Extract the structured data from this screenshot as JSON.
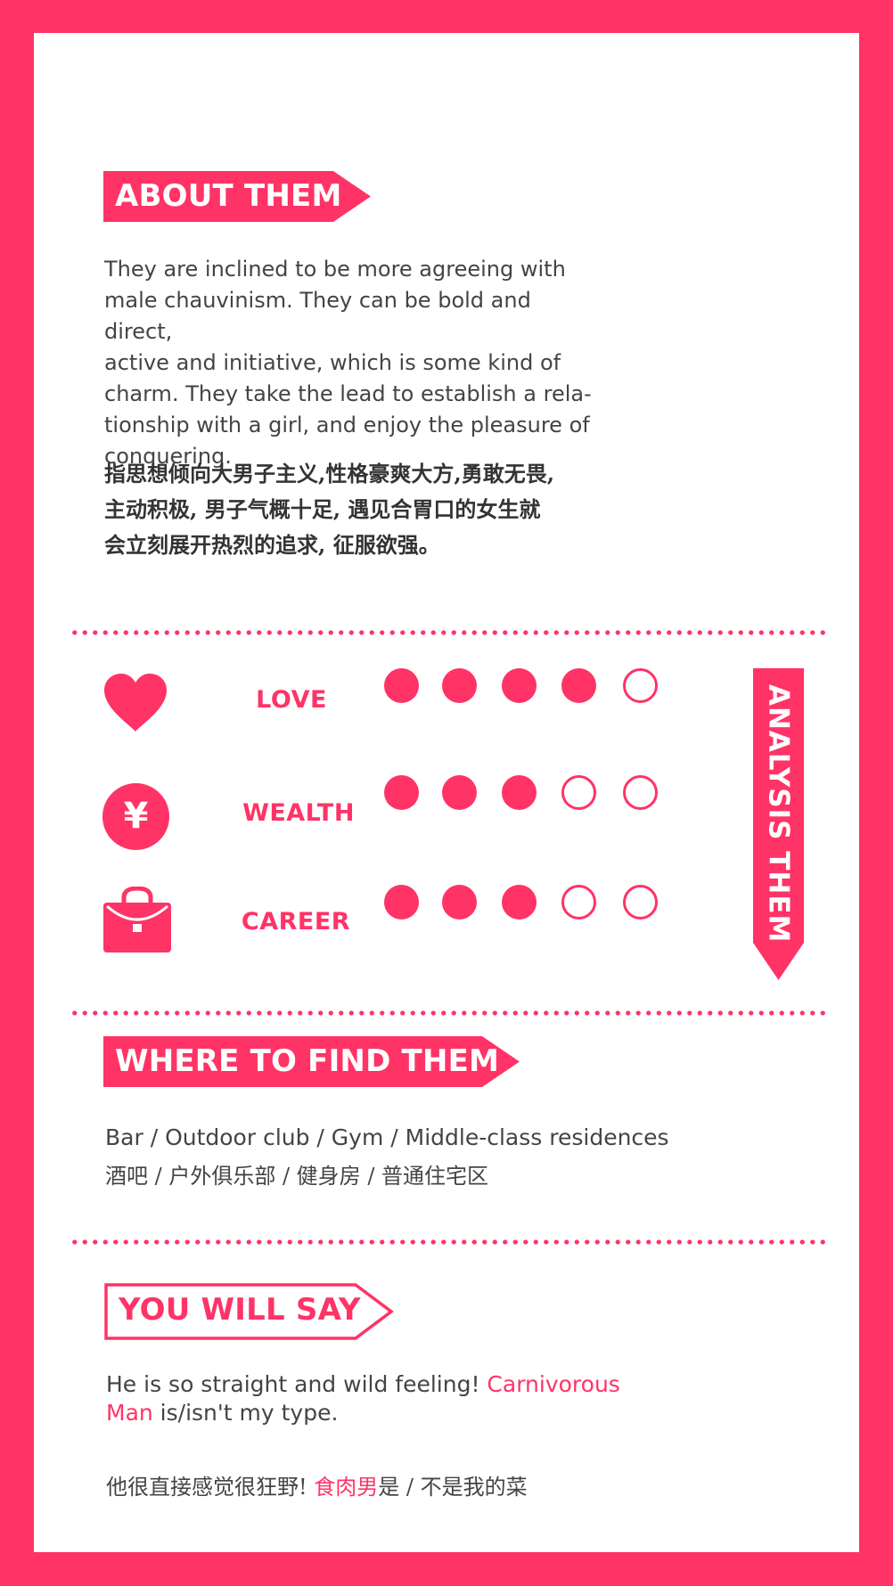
{
  "about": {
    "title": "ABOUT THEM",
    "en_lines": [
      "They are inclined to be more agreeing with",
      "male chauvinism. They can be bold and direct,",
      "active and initiative, which is some kind of",
      "charm. They take the lead to establish a rela-",
      "tionship with a girl, and enjoy the pleasure of",
      "conquering."
    ],
    "cn_lines": [
      "指思想倾向大男子主义,性格豪爽大方,勇敢无畏,",
      "主动积极, 男子气概十足, 遇见合胃口的女生就",
      "会立刻展开热烈的追求, 征服欲强。"
    ]
  },
  "analysis": {
    "title": "ANALYSIS THEM",
    "rows": [
      {
        "label": "LOVE",
        "icon": "heart-icon",
        "rating": 4,
        "max": 5
      },
      {
        "label": "WEALTH",
        "icon": "yen-coin-icon",
        "yen": "¥",
        "rating": 3,
        "max": 5
      },
      {
        "label": "CAREER",
        "icon": "briefcase-icon",
        "rating": 3,
        "max": 5
      }
    ]
  },
  "where": {
    "title": "WHERE TO FIND THEM",
    "en": "Bar / Outdoor club / Gym / Middle-class residences",
    "cn": "酒吧 / 户外俱乐部 / 健身房 / 普通住宅区"
  },
  "say": {
    "title": "YOU WILL SAY",
    "en_part1": "He is so straight and wild feeling! ",
    "en_accent_1": "Carnivorous",
    "en_accent_2": "Man",
    "en_part2": " is/isn't my type.",
    "cn_part1": "他很直接感觉很狂野! ",
    "cn_accent": "食肉男",
    "cn_part2": "是 / 不是我的菜"
  },
  "colors": {
    "accent": "#ff3366",
    "text": "#444444",
    "background": "#ffffff"
  }
}
